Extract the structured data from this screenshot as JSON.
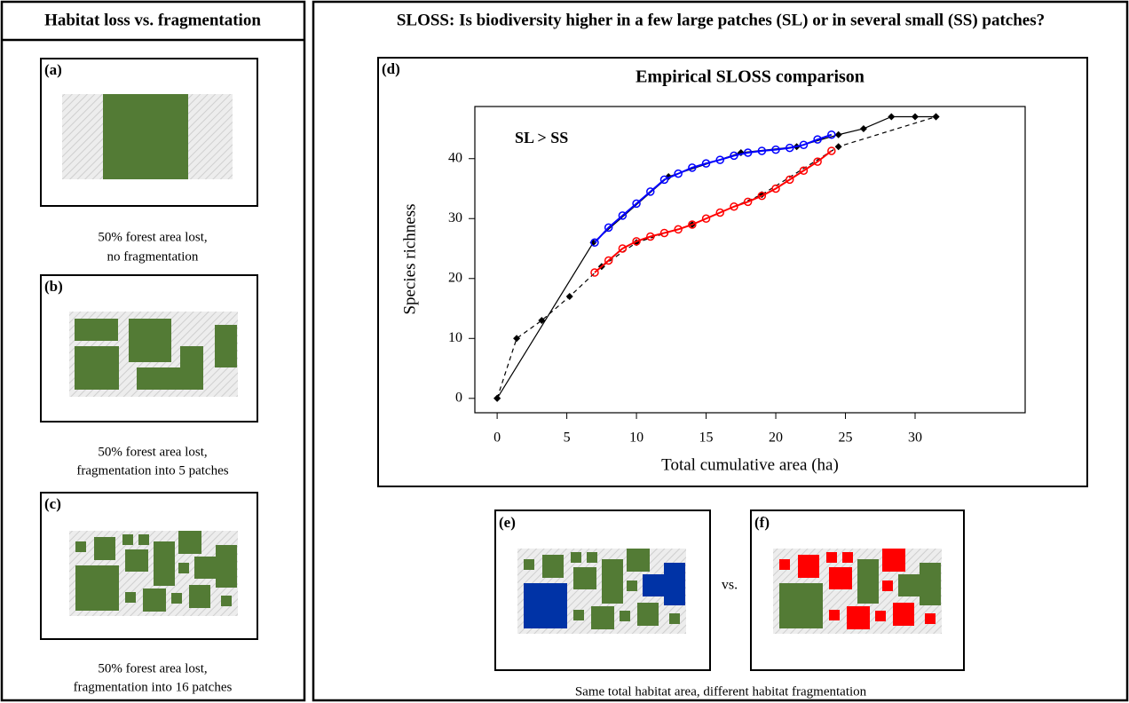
{
  "left": {
    "title": "Habitat loss vs. fragmentation",
    "panels": [
      {
        "label": "(a)",
        "caption": [
          "50% forest area lost,",
          "no fragmentation"
        ]
      },
      {
        "label": "(b)",
        "caption": [
          "50% forest area lost,",
          "fragmentation into 5 patches"
        ]
      },
      {
        "label": "(c)",
        "caption": [
          "50% forest area lost,",
          "fragmentation into 16 patches"
        ]
      }
    ]
  },
  "right": {
    "title": "SLOSS: Is biodiversity higher in a few large patches (SL) or in several small (SS) patches?",
    "panels": [
      {
        "label": "(e)"
      },
      {
        "label": "(f)"
      }
    ],
    "vs": "vs.",
    "caption": "Same total habitat area, different habitat fragmentation"
  },
  "chart_data": {
    "type": "line",
    "panel_label": "(d)",
    "title": "Empirical SLOSS comparison",
    "annotation": "SL > SS",
    "x_label": "Total cumulative area (ha)",
    "y_label": "Species richness",
    "xlim": [
      -1.6,
      37.9
    ],
    "ylim": [
      -2.4,
      48.7
    ],
    "xticks": [
      0,
      5,
      10,
      15,
      20,
      25,
      30
    ],
    "yticks": [
      0,
      10,
      20,
      30,
      40
    ],
    "series": [
      {
        "color": "#000000",
        "style": "solid",
        "marker": "diamond",
        "x": [
          0,
          6.9,
          12.3,
          17.5,
          21.5,
          24.5,
          26.3,
          28.3,
          30,
          31.5
        ],
        "values": [
          0,
          26,
          37,
          41,
          42,
          44,
          45,
          47,
          47,
          47
        ]
      },
      {
        "color": "#000000",
        "style": "dashed",
        "marker": "diamond",
        "x": [
          0,
          1.4,
          3.2,
          5.2,
          7.5,
          10,
          14,
          19,
          24.5,
          31.5
        ],
        "values": [
          0,
          10,
          13,
          17,
          22,
          26,
          29,
          34,
          42,
          47
        ]
      },
      {
        "color": "#0000ff",
        "style": "circles",
        "marker": "open-circle",
        "x": [
          7,
          8,
          9,
          10,
          11,
          12,
          13,
          14,
          15,
          16,
          17,
          18,
          19,
          20,
          21,
          22,
          23,
          24
        ],
        "values": [
          26,
          28.5,
          30.5,
          32.5,
          34.5,
          36.5,
          37.5,
          38.5,
          39.2,
          39.8,
          40.5,
          41,
          41.3,
          41.5,
          41.8,
          42.3,
          43.2,
          44
        ]
      },
      {
        "color": "#ff0000",
        "style": "circles",
        "marker": "open-circle",
        "x": [
          7,
          8,
          9,
          10,
          11,
          12,
          13,
          14,
          15,
          16,
          17,
          18,
          19,
          20,
          21,
          22,
          23,
          24
        ],
        "values": [
          21,
          23,
          25,
          26.2,
          27,
          27.6,
          28.2,
          29,
          30,
          31,
          32,
          32.8,
          33.8,
          35,
          36.5,
          38,
          39.5,
          41.3
        ]
      }
    ]
  }
}
